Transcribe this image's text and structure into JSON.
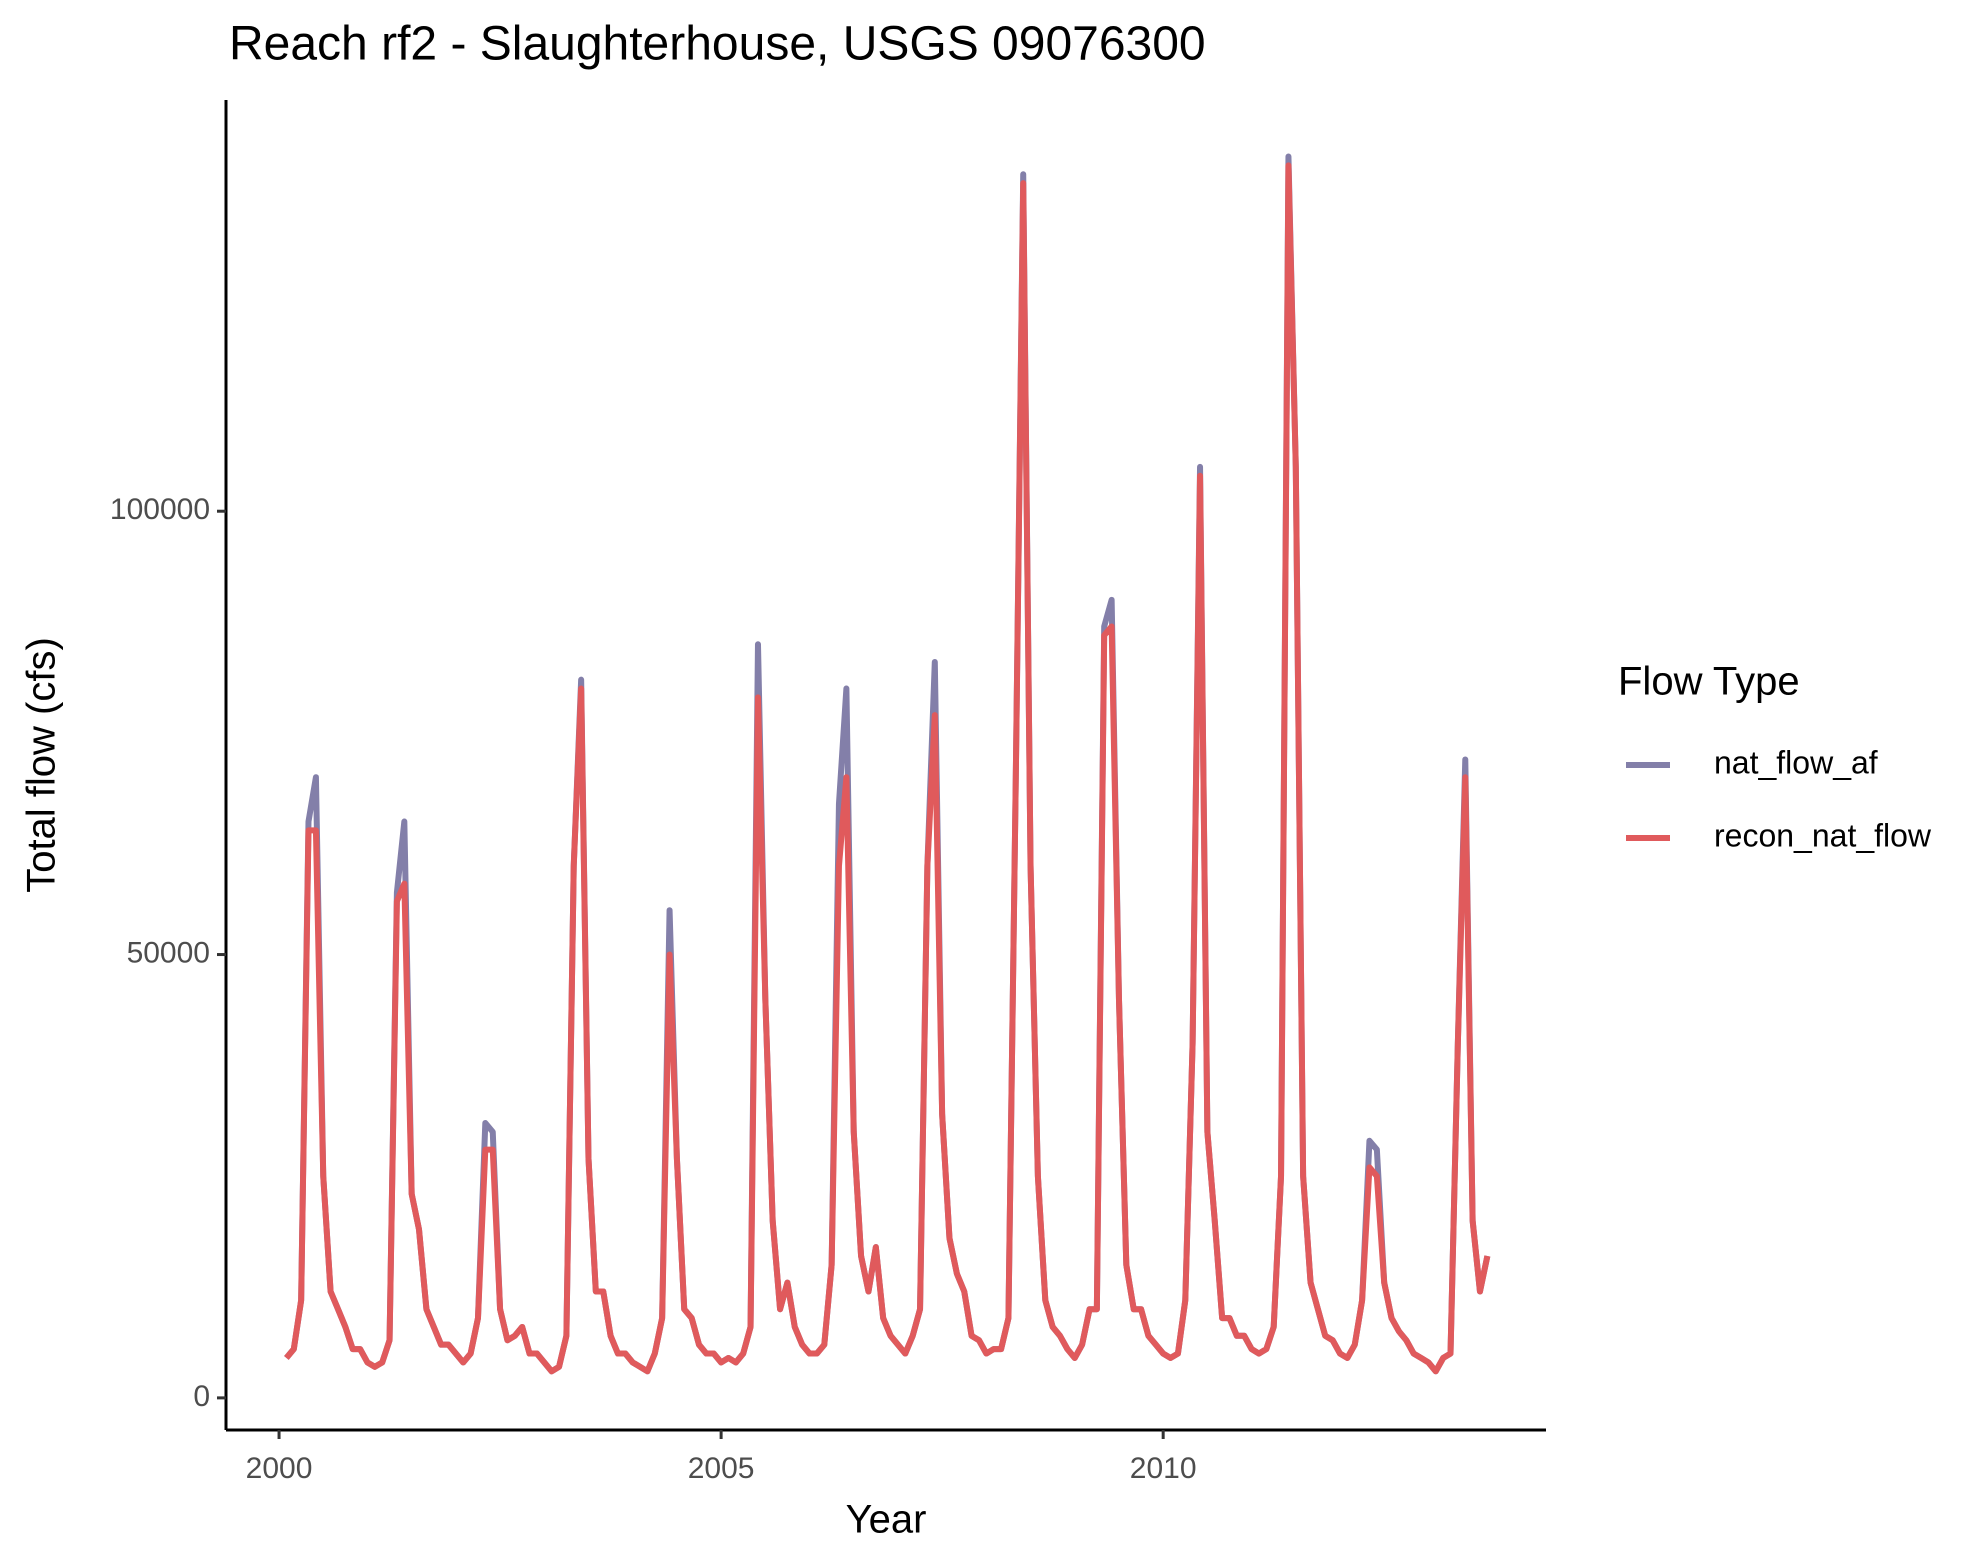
{
  "chart_data": {
    "type": "line",
    "title": "Reach rf2 - Slaughterhouse, USGS 09076300",
    "x_label": "Year",
    "y_label": "Total flow (cfs)",
    "legend_title": "Flow Type",
    "legend": "right",
    "grid": false,
    "xlim": [
      1999.4,
      2014.33
    ],
    "xticks": [
      2000,
      2005,
      2010
    ],
    "ylim": [
      -3623,
      146377
    ],
    "yticks": [
      0,
      50000,
      100000
    ],
    "x": [
      2000.083,
      2000.167,
      2000.25,
      2000.333,
      2000.417,
      2000.5,
      2000.583,
      2000.667,
      2000.75,
      2000.833,
      2000.917,
      2001,
      2001.083,
      2001.167,
      2001.25,
      2001.333,
      2001.417,
      2001.5,
      2001.583,
      2001.667,
      2001.75,
      2001.833,
      2001.917,
      2002,
      2002.083,
      2002.167,
      2002.25,
      2002.333,
      2002.417,
      2002.5,
      2002.583,
      2002.667,
      2002.75,
      2002.833,
      2002.917,
      2003,
      2003.083,
      2003.167,
      2003.25,
      2003.333,
      2003.417,
      2003.5,
      2003.583,
      2003.667,
      2003.75,
      2003.833,
      2003.917,
      2004,
      2004.083,
      2004.167,
      2004.25,
      2004.333,
      2004.417,
      2004.5,
      2004.583,
      2004.667,
      2004.75,
      2004.833,
      2004.917,
      2005,
      2005.083,
      2005.167,
      2005.25,
      2005.333,
      2005.417,
      2005.5,
      2005.583,
      2005.667,
      2005.75,
      2005.833,
      2005.917,
      2006,
      2006.083,
      2006.167,
      2006.25,
      2006.333,
      2006.417,
      2006.5,
      2006.583,
      2006.667,
      2006.75,
      2006.833,
      2006.917,
      2007,
      2007.083,
      2007.167,
      2007.25,
      2007.333,
      2007.417,
      2007.5,
      2007.583,
      2007.667,
      2007.75,
      2007.833,
      2007.917,
      2008,
      2008.083,
      2008.167,
      2008.25,
      2008.333,
      2008.417,
      2008.5,
      2008.583,
      2008.667,
      2008.75,
      2008.833,
      2008.917,
      2009,
      2009.083,
      2009.167,
      2009.25,
      2009.333,
      2009.417,
      2009.5,
      2009.583,
      2009.667,
      2009.75,
      2009.833,
      2009.917,
      2010,
      2010.083,
      2010.167,
      2010.25,
      2010.333,
      2010.417,
      2010.5,
      2010.583,
      2010.667,
      2010.75,
      2010.833,
      2010.917,
      2011,
      2011.083,
      2011.167,
      2011.25,
      2011.333,
      2011.417,
      2011.5,
      2011.583,
      2011.667,
      2011.75,
      2011.833,
      2011.917,
      2012,
      2012.083,
      2012.167,
      2012.25,
      2012.333,
      2012.417,
      2012.5,
      2012.583,
      2012.667,
      2012.75,
      2012.833,
      2012.917,
      2013,
      2013.083,
      2013.167,
      2013.25,
      2013.333,
      2013.417,
      2013.5,
      2013.583,
      2013.667
    ],
    "series": [
      {
        "name": "nat_flow_af",
        "color": "#837fa9",
        "values": [
          4500,
          5500,
          11000,
          65000,
          70000,
          25000,
          12000,
          10000,
          8000,
          5500,
          5500,
          4000,
          3500,
          4000,
          6500,
          57000,
          65000,
          23000,
          19000,
          10000,
          8000,
          6000,
          6000,
          5000,
          4000,
          5000,
          9000,
          31000,
          30000,
          10000,
          6500,
          7000,
          8000,
          5000,
          5000,
          4000,
          3000,
          3500,
          7000,
          60000,
          81000,
          27000,
          12000,
          12000,
          7000,
          5000,
          5000,
          4000,
          3500,
          3000,
          5000,
          9000,
          55000,
          27000,
          10000,
          9000,
          6000,
          5000,
          5000,
          4000,
          4500,
          4000,
          5000,
          8000,
          85000,
          45000,
          20000,
          10000,
          13000,
          8000,
          6000,
          5000,
          5000,
          6000,
          15000,
          67000,
          80000,
          30000,
          16000,
          12000,
          17000,
          9000,
          7000,
          6000,
          5000,
          7000,
          10000,
          60000,
          83000,
          32000,
          18000,
          14000,
          12000,
          7000,
          6500,
          5000,
          5500,
          5500,
          9000,
          70000,
          138000,
          60000,
          25000,
          11000,
          8000,
          7000,
          5500,
          4500,
          6000,
          10000,
          10000,
          87000,
          90000,
          45000,
          15000,
          10000,
          10000,
          7000,
          6000,
          5000,
          4500,
          5000,
          11000,
          40000,
          105000,
          30000,
          20000,
          9000,
          9000,
          7000,
          7000,
          5500,
          5000,
          5500,
          8000,
          25000,
          140000,
          105000,
          25000,
          13000,
          10000,
          7000,
          6500,
          5000,
          4500,
          6000,
          11000,
          29000,
          28000,
          13000,
          9000,
          7500,
          6500,
          5000,
          4500,
          4000,
          3000,
          4500,
          5000,
          40000,
          72000,
          20000,
          12000,
          16000
        ]
      },
      {
        "name": "recon_nat_flow",
        "color": "#e05a5c",
        "values": [
          4500,
          5500,
          11000,
          64000,
          64000,
          25000,
          12000,
          10000,
          8000,
          5500,
          5500,
          4000,
          3500,
          4000,
          6500,
          56000,
          58000,
          23000,
          19000,
          10000,
          8000,
          6000,
          6000,
          5000,
          4000,
          5000,
          9000,
          28000,
          28000,
          10000,
          6500,
          7000,
          8000,
          5000,
          5000,
          4000,
          3000,
          3500,
          7000,
          60000,
          80000,
          27000,
          12000,
          12000,
          7000,
          5000,
          5000,
          4000,
          3500,
          3000,
          5000,
          9000,
          50000,
          27000,
          10000,
          9000,
          6000,
          5000,
          5000,
          4000,
          4500,
          4000,
          5000,
          8000,
          79000,
          45000,
          20000,
          10000,
          13000,
          8000,
          6000,
          5000,
          5000,
          6000,
          15000,
          60000,
          70000,
          30000,
          16000,
          12000,
          17000,
          9000,
          7000,
          6000,
          5000,
          7000,
          10000,
          60000,
          77000,
          32000,
          18000,
          14000,
          12000,
          7000,
          6500,
          5000,
          5500,
          5500,
          9000,
          70000,
          137000,
          60000,
          25000,
          11000,
          8000,
          7000,
          5500,
          4500,
          6000,
          10000,
          10000,
          86000,
          87000,
          45000,
          15000,
          10000,
          10000,
          7000,
          6000,
          5000,
          4500,
          5000,
          11000,
          40000,
          104000,
          30000,
          20000,
          9000,
          9000,
          7000,
          7000,
          5500,
          5000,
          5500,
          8000,
          25000,
          139000,
          105000,
          25000,
          13000,
          10000,
          7000,
          6500,
          5000,
          4500,
          6000,
          11000,
          26000,
          25000,
          13000,
          9000,
          7500,
          6500,
          5000,
          4500,
          4000,
          3000,
          4500,
          5000,
          40000,
          70000,
          20000,
          12000,
          16000
        ]
      }
    ]
  }
}
